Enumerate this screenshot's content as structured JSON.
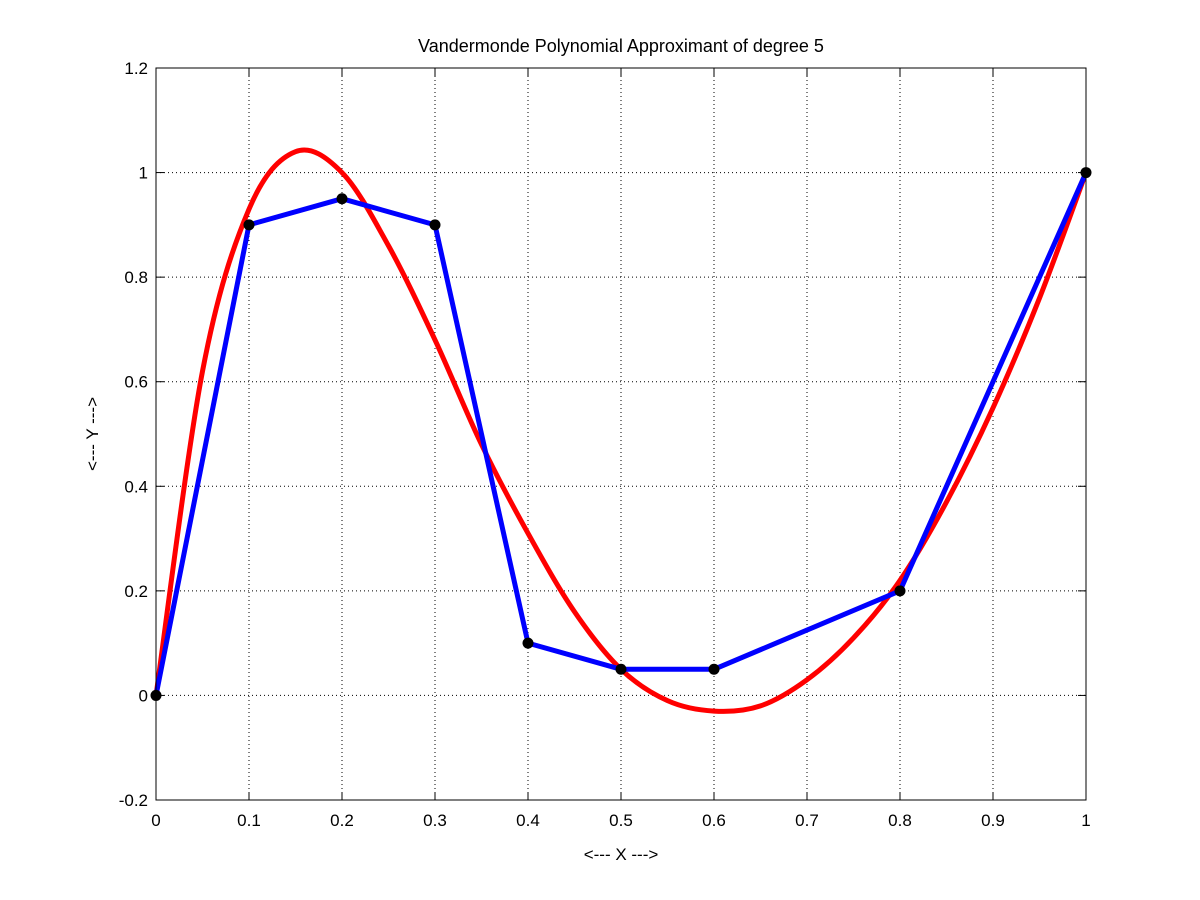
{
  "chart_data": {
    "type": "line",
    "title": "Vandermonde Polynomial Approximant of degree 5",
    "xlabel": "<--- X --->",
    "ylabel": "<--- Y --->",
    "xlim": [
      0,
      1
    ],
    "ylim": [
      -0.2,
      1.2
    ],
    "xticks": [
      0,
      0.1,
      0.2,
      0.3,
      0.4,
      0.5,
      0.6,
      0.7,
      0.8,
      0.9,
      1
    ],
    "xtick_labels": [
      "0",
      "0.1",
      "0.2",
      "0.3",
      "0.4",
      "0.5",
      "0.6",
      "0.7",
      "0.8",
      "0.9",
      "1"
    ],
    "yticks": [
      -0.2,
      0,
      0.2,
      0.4,
      0.6,
      0.8,
      1,
      1.2
    ],
    "ytick_labels": [
      "-0.2",
      "0",
      "0.2",
      "0.4",
      "0.6",
      "0.8",
      "1",
      "1.2"
    ],
    "grid": true,
    "grid_style": "dotted",
    "series": [
      {
        "kind": "polynomial-curve",
        "color": "#ff0000",
        "x": [
          0,
          0.05,
          0.1,
          0.15,
          0.2,
          0.25,
          0.3,
          0.35,
          0.4,
          0.45,
          0.5,
          0.55,
          0.6,
          0.65,
          0.7,
          0.75,
          0.8,
          0.85,
          0.9,
          0.95,
          1
        ],
        "y": [
          0,
          0.62,
          0.93,
          1.04,
          1.0,
          0.86,
          0.68,
          0.48,
          0.31,
          0.16,
          0.05,
          -0.01,
          -0.03,
          -0.02,
          0.03,
          0.11,
          0.22,
          0.37,
          0.55,
          0.76,
          1.0
        ]
      },
      {
        "kind": "data-polyline",
        "color": "#0000ff",
        "x": [
          0,
          0.1,
          0.2,
          0.3,
          0.4,
          0.5,
          0.6,
          0.8,
          1
        ],
        "y": [
          0,
          0.9,
          0.95,
          0.9,
          0.1,
          0.05,
          0.05,
          0.2,
          1
        ]
      }
    ],
    "points": {
      "color": "#000000",
      "x": [
        0,
        0.1,
        0.2,
        0.3,
        0.4,
        0.5,
        0.6,
        0.8,
        1
      ],
      "y": [
        0,
        0.9,
        0.95,
        0.9,
        0.1,
        0.05,
        0.05,
        0.2,
        1
      ]
    }
  }
}
